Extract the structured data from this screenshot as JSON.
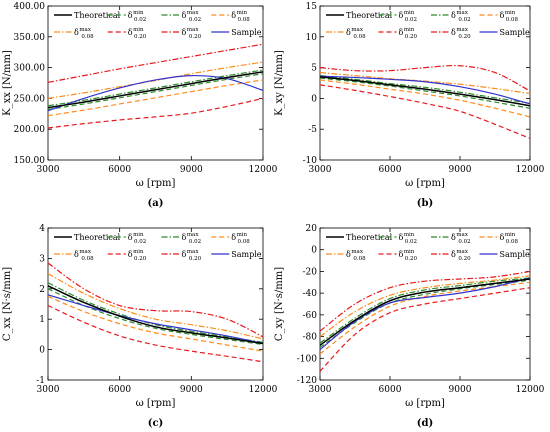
{
  "chart_data": [
    {
      "type": "line",
      "panel_label": "(a)",
      "ylabel": "K_xx [N/mm]",
      "xlabel": "ω [rpm]",
      "xlim": [
        3000,
        12000
      ],
      "ylim": [
        150,
        400
      ],
      "xticks": [
        3000,
        6000,
        9000,
        12000
      ],
      "yticks": [
        150,
        200,
        250,
        300,
        350,
        400
      ],
      "ytick_labels": [
        "150.00",
        "200.00",
        "250.00",
        "300.00",
        "350.00",
        "400.00"
      ],
      "legend": {
        "position": "top",
        "columns": 4
      },
      "x": [
        3000,
        4500,
        6000,
        7500,
        9000,
        10500,
        12000
      ],
      "series": [
        {
          "name": "Theoretical",
          "color": "#000000",
          "dash": "solid",
          "values": [
            235,
            244,
            254,
            264,
            274,
            284,
            293
          ]
        },
        {
          "name": "δ_{0.02}^{min}",
          "color": "#2e8b2e",
          "dash": "dash",
          "values": [
            232,
            241,
            251,
            261,
            271,
            281,
            290
          ]
        },
        {
          "name": "δ_{0.02}^{max}",
          "color": "#2e8b2e",
          "dash": "dashdot",
          "values": [
            238,
            247,
            257,
            267,
            277,
            287,
            296
          ]
        },
        {
          "name": "δ_{0.08}^{min}",
          "color": "#ff8c1a",
          "dash": "dash",
          "values": [
            222,
            231,
            241,
            251,
            261,
            271,
            280
          ]
        },
        {
          "name": "δ_{0.08}^{max}",
          "color": "#ff8c1a",
          "dash": "dashdot",
          "values": [
            250,
            259,
            269,
            279,
            290,
            300,
            309
          ]
        },
        {
          "name": "δ_{0.20}^{min}",
          "color": "#e8191c",
          "dash": "dash",
          "values": [
            202,
            209,
            215,
            220,
            226,
            237,
            250
          ]
        },
        {
          "name": "δ_{0.20}^{max}",
          "color": "#e8191c",
          "dash": "dashdot",
          "values": [
            276,
            287,
            298,
            308,
            318,
            328,
            338
          ]
        },
        {
          "name": "Sample",
          "color": "#3333cc",
          "dash": "solid",
          "values": [
            230,
            250,
            267,
            280,
            287,
            282,
            263
          ]
        }
      ]
    },
    {
      "type": "line",
      "panel_label": "(b)",
      "ylabel": "K_xy [N/mm]",
      "xlabel": "ω [rpm]",
      "xlim": [
        3000,
        12000
      ],
      "ylim": [
        -10,
        15
      ],
      "xticks": [
        3000,
        6000,
        9000,
        12000
      ],
      "yticks": [
        -10,
        -5,
        0,
        5,
        10,
        15
      ],
      "ytick_labels": [
        "-10",
        "-5",
        "0",
        "5",
        "10",
        "15"
      ],
      "legend": {
        "position": "top",
        "columns": 4
      },
      "x": [
        3000,
        4500,
        6000,
        7500,
        9000,
        10500,
        12000
      ],
      "series": [
        {
          "name": "Theoretical",
          "color": "#000000",
          "dash": "solid",
          "values": [
            3.5,
            2.9,
            2.2,
            1.5,
            0.7,
            -0.2,
            -1.2
          ]
        },
        {
          "name": "δ_{0.02}^{min}",
          "color": "#2e8b2e",
          "dash": "dash",
          "values": [
            3.3,
            2.7,
            2.0,
            1.2,
            0.4,
            -0.6,
            -1.6
          ]
        },
        {
          "name": "δ_{0.02}^{max}",
          "color": "#2e8b2e",
          "dash": "dashdot",
          "values": [
            3.7,
            3.1,
            2.4,
            1.8,
            1.0,
            0.1,
            -0.8
          ]
        },
        {
          "name": "δ_{0.08}^{min}",
          "color": "#ff8c1a",
          "dash": "dash",
          "values": [
            3.0,
            2.3,
            1.5,
            0.7,
            -0.3,
            -1.6,
            -3.0
          ]
        },
        {
          "name": "δ_{0.08}^{max}",
          "color": "#ff8c1a",
          "dash": "dashdot",
          "values": [
            4.2,
            3.7,
            3.2,
            2.8,
            2.3,
            1.6,
            0.8
          ]
        },
        {
          "name": "δ_{0.20}^{min}",
          "color": "#e8191c",
          "dash": "dash",
          "values": [
            2.2,
            1.3,
            0.3,
            -0.8,
            -2.1,
            -4.2,
            -6.5
          ]
        },
        {
          "name": "δ_{0.20}^{max}",
          "color": "#e8191c",
          "dash": "dashdot",
          "values": [
            5.0,
            4.5,
            4.5,
            5.0,
            5.3,
            4.2,
            1.2
          ]
        },
        {
          "name": "Sample",
          "color": "#3333cc",
          "dash": "solid",
          "values": [
            3.6,
            3.4,
            3.1,
            2.7,
            1.9,
            0.7,
            -0.9
          ]
        }
      ]
    },
    {
      "type": "line",
      "panel_label": "(c)",
      "ylabel": "C_xx [N·s/mm]",
      "xlabel": "ω [rpm]",
      "xlim": [
        3000,
        12000
      ],
      "ylim": [
        -1,
        4
      ],
      "xticks": [
        3000,
        6000,
        9000,
        12000
      ],
      "yticks": [
        -1,
        0,
        1,
        2,
        3,
        4
      ],
      "ytick_labels": [
        "-1",
        "0",
        "1",
        "2",
        "3",
        "4"
      ],
      "legend": {
        "position": "top",
        "columns": 4
      },
      "x": [
        3000,
        4500,
        6000,
        7500,
        9000,
        10500,
        12000
      ],
      "series": [
        {
          "name": "Theoretical",
          "color": "#000000",
          "dash": "solid",
          "values": [
            2.1,
            1.55,
            1.1,
            0.75,
            0.55,
            0.38,
            0.2
          ]
        },
        {
          "name": "δ_{0.02}^{min}",
          "color": "#2e8b2e",
          "dash": "dash",
          "values": [
            2.0,
            1.45,
            1.02,
            0.7,
            0.5,
            0.33,
            0.17
          ]
        },
        {
          "name": "δ_{0.02}^{max}",
          "color": "#2e8b2e",
          "dash": "dashdot",
          "values": [
            2.2,
            1.62,
            1.17,
            0.82,
            0.6,
            0.42,
            0.24
          ]
        },
        {
          "name": "δ_{0.08}^{min}",
          "color": "#ff8c1a",
          "dash": "dash",
          "values": [
            1.75,
            1.25,
            0.85,
            0.55,
            0.35,
            0.15,
            -0.05
          ]
        },
        {
          "name": "δ_{0.08}^{max}",
          "color": "#ff8c1a",
          "dash": "dashdot",
          "values": [
            2.5,
            1.85,
            1.35,
            1.0,
            0.82,
            0.62,
            0.35
          ]
        },
        {
          "name": "δ_{0.20}^{min}",
          "color": "#e8191c",
          "dash": "dash",
          "values": [
            1.45,
            0.9,
            0.45,
            0.15,
            -0.05,
            -0.22,
            -0.4
          ]
        },
        {
          "name": "δ_{0.20}^{max}",
          "color": "#e8191c",
          "dash": "dashdot",
          "values": [
            2.85,
            2.0,
            1.45,
            1.28,
            1.25,
            1.0,
            0.42
          ]
        },
        {
          "name": "Sample",
          "color": "#3333cc",
          "dash": "solid",
          "values": [
            1.8,
            1.45,
            1.12,
            0.85,
            0.65,
            0.45,
            0.2
          ]
        }
      ]
    },
    {
      "type": "line",
      "panel_label": "(d)",
      "ylabel": "C_xy [N·s/mm]",
      "xlabel": "ω [rpm]",
      "xlim": [
        3000,
        12000
      ],
      "ylim": [
        -120,
        20
      ],
      "xticks": [
        3000,
        6000,
        9000,
        12000
      ],
      "yticks": [
        -120,
        -100,
        -80,
        -60,
        -40,
        -20,
        0,
        20
      ],
      "ytick_labels": [
        "-120",
        "-100",
        "-80",
        "-60",
        "-40",
        "-20",
        "0",
        "20"
      ],
      "legend": {
        "position": "top",
        "columns": 4
      },
      "x": [
        3000,
        4500,
        6000,
        7500,
        9000,
        10500,
        12000
      ],
      "series": [
        {
          "name": "Theoretical",
          "color": "#000000",
          "dash": "solid",
          "values": [
            -88,
            -65,
            -47,
            -39,
            -35,
            -31,
            -27
          ]
        },
        {
          "name": "δ_{0.02}^{min}",
          "color": "#2e8b2e",
          "dash": "dash",
          "values": [
            -90,
            -67,
            -49,
            -41,
            -36,
            -32,
            -28
          ]
        },
        {
          "name": "δ_{0.02}^{max}",
          "color": "#2e8b2e",
          "dash": "dashdot",
          "values": [
            -86,
            -63,
            -45,
            -37,
            -33,
            -29,
            -26
          ]
        },
        {
          "name": "δ_{0.08}^{min}",
          "color": "#ff8c1a",
          "dash": "dash",
          "values": [
            -96,
            -71,
            -52,
            -43,
            -38,
            -34,
            -30
          ]
        },
        {
          "name": "δ_{0.08}^{max}",
          "color": "#ff8c1a",
          "dash": "dashdot",
          "values": [
            -80,
            -57,
            -42,
            -35,
            -31,
            -28,
            -24
          ]
        },
        {
          "name": "δ_{0.20}^{min}",
          "color": "#e8191c",
          "dash": "dash",
          "values": [
            -112,
            -78,
            -58,
            -50,
            -45,
            -40,
            -35
          ]
        },
        {
          "name": "δ_{0.20}^{max}",
          "color": "#e8191c",
          "dash": "dashdot",
          "values": [
            -75,
            -50,
            -35,
            -29,
            -27,
            -25,
            -20
          ]
        },
        {
          "name": "Sample",
          "color": "#3333cc",
          "dash": "solid",
          "values": [
            -92,
            -66,
            -49,
            -44,
            -40,
            -34,
            -26
          ]
        }
      ]
    }
  ]
}
